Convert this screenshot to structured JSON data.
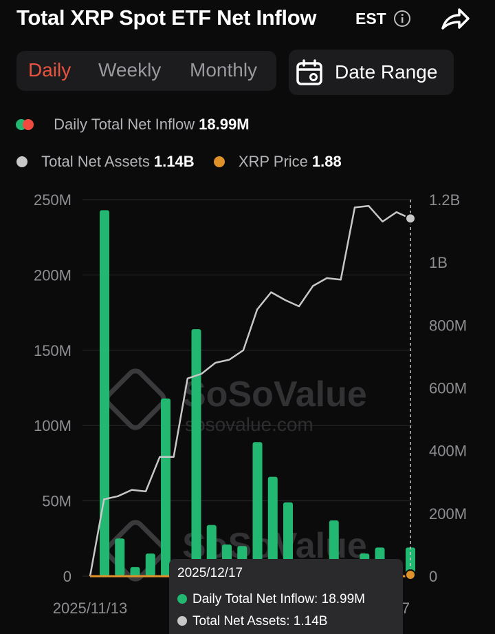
{
  "header": {
    "title": "Total XRP Spot ETF Net Inflow",
    "timezone": "EST"
  },
  "tabs": [
    {
      "label": "Daily",
      "active": true
    },
    {
      "label": "Weekly",
      "active": false
    },
    {
      "label": "Monthly",
      "active": false
    }
  ],
  "date_range": {
    "label": "Date Range"
  },
  "legend": {
    "inflow_label": "Daily Total Net Inflow",
    "inflow_value": "18.99M",
    "assets_label": "Total Net Assets",
    "assets_value": "1.14B",
    "price_label": "XRP Price",
    "price_value": "1.88"
  },
  "watermark": {
    "brand": "SoSoValue",
    "domain": "sosovalue.com"
  },
  "tooltip": {
    "date": "2025/12/17",
    "inflow_label": "Daily Total Net Inflow:",
    "inflow_value": "18.99M",
    "assets_label": "Total Net Assets:",
    "assets_value": "1.14B"
  },
  "colors": {
    "inflow_positive": "#22b872",
    "inflow_negative": "#f04b3e",
    "total_net_assets": "#c8c8c8",
    "xrp_price": "#e0922a",
    "active_tab": "#e8533f",
    "background": "#0b0b0c"
  },
  "chart_data": {
    "type": "bar",
    "x_start_label": "2025/11/13",
    "x_end_label_partial": "7",
    "y_left": {
      "ticks": [
        "0",
        "50M",
        "100M",
        "150M",
        "200M",
        "250M"
      ],
      "range": [
        0,
        250
      ]
    },
    "y_right": {
      "ticks": [
        "0",
        "200M",
        "400M",
        "600M",
        "800M",
        "1B",
        "1.2B"
      ],
      "range": [
        0,
        1.2
      ]
    },
    "grid": true,
    "series": [
      {
        "name": "Daily Total Net Inflow",
        "axis": "left",
        "unit": "M",
        "values": [
          0,
          243,
          25,
          6,
          15,
          118,
          0,
          164,
          34,
          21,
          20,
          89,
          66,
          49,
          0,
          4,
          37,
          0,
          15,
          19,
          0,
          19
        ]
      },
      {
        "name": "Total Net Assets",
        "axis": "right",
        "unit": "B",
        "values": [
          0,
          0.245,
          0.255,
          0.275,
          0.27,
          0.38,
          0.38,
          0.63,
          0.645,
          0.68,
          0.69,
          0.72,
          0.85,
          0.905,
          0.88,
          0.86,
          0.925,
          0.95,
          0.945,
          1.175,
          1.18,
          1.13,
          1.16,
          1.14
        ]
      },
      {
        "name": "XRP Price",
        "axis": "hidden",
        "values": [
          1.88
        ]
      }
    ]
  }
}
